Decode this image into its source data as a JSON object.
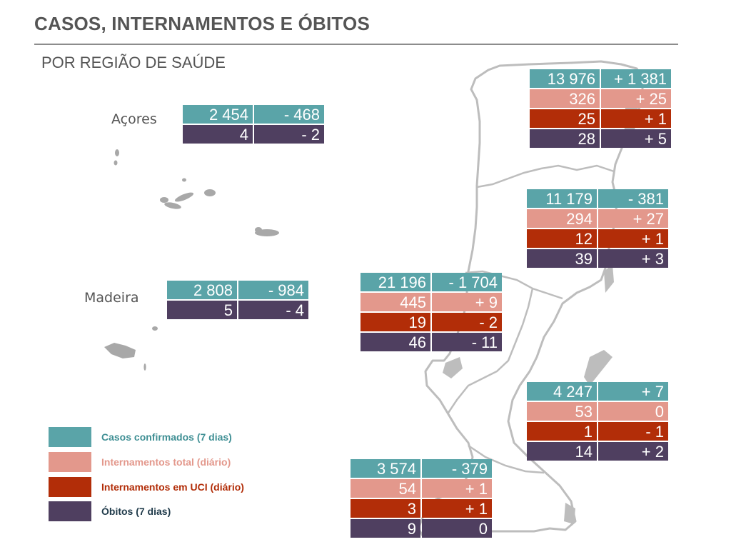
{
  "header": {
    "title": "CASOS, INTERNAMENTOS E ÓBITOS",
    "subtitle": "POR REGIÃO DE SAÚDE"
  },
  "colors": {
    "cases": "#5aa4a8",
    "hospitalized": "#e3988c",
    "icu": "#b22d08",
    "deaths": "#4f3f60"
  },
  "regions": {
    "acores": {
      "name": "Açores",
      "cases": "2 454",
      "cases_change": "- 468",
      "deaths": "4",
      "deaths_change": "- 2"
    },
    "madeira": {
      "name": "Madeira",
      "cases": "2 808",
      "cases_change": "- 984",
      "deaths": "5",
      "deaths_change": "- 4"
    },
    "norte": {
      "cases": "13 976",
      "cases_change": "+ 1 381",
      "hosp": "326",
      "hosp_change": "+ 25",
      "icu": "25",
      "icu_change": "+ 1",
      "deaths": "28",
      "deaths_change": "+ 5"
    },
    "centro": {
      "cases": "11 179",
      "cases_change": "- 381",
      "hosp": "294",
      "hosp_change": "+ 27",
      "icu": "12",
      "icu_change": "+ 1",
      "deaths": "39",
      "deaths_change": "+ 3"
    },
    "lvt": {
      "cases": "21 196",
      "cases_change": "- 1 704",
      "hosp": "445",
      "hosp_change": "+ 9",
      "icu": "19",
      "icu_change": "- 2",
      "deaths": "46",
      "deaths_change": "- 11"
    },
    "alentejo": {
      "cases": "4 247",
      "cases_change": "+ 7",
      "hosp": "53",
      "hosp_change": "0",
      "icu": "1",
      "icu_change": "- 1",
      "deaths": "14",
      "deaths_change": "+ 2"
    },
    "algarve": {
      "cases": "3 574",
      "cases_change": "- 379",
      "hosp": "54",
      "hosp_change": "+ 1",
      "icu": "3",
      "icu_change": "+ 1",
      "deaths": "9",
      "deaths_change": "0"
    }
  },
  "legend": {
    "cases": "Casos confirmados (7 dias)",
    "hospitalized": "Internamentos total (diário)",
    "icu": "Internamentos em UCI (diário)",
    "deaths": "Óbitos (7 dias)"
  }
}
